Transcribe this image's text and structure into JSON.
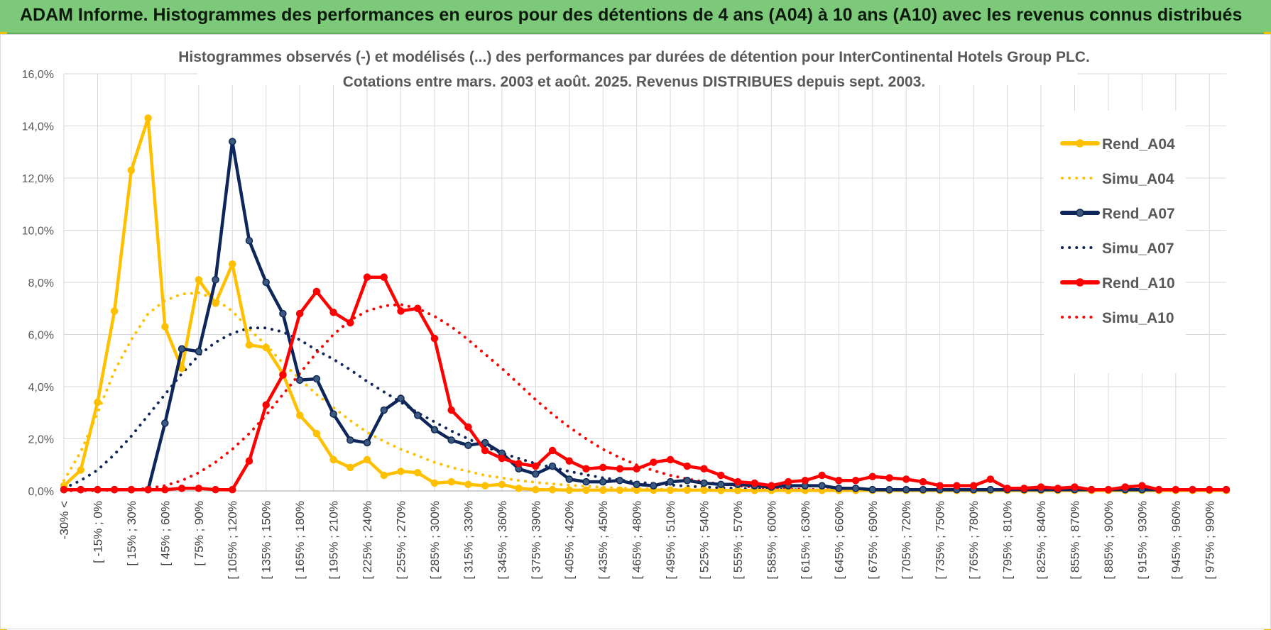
{
  "header": {
    "title": "ADAM Informe. Histogrammes des performances en euros pour des détentions de 4 ans (A04) à 10 ans (A10) avec les revenus connus distribués"
  },
  "colors": {
    "header_bg": "#7cc97a",
    "A04": "#ffc000",
    "A07": "#0e2659",
    "A10": "#ff0000",
    "grid": "#d9d9d9"
  },
  "chart_data": {
    "type": "line",
    "title": "Histogrammes observés (-) et modélisés (...) des performances par durées de détention pour InterContinental Hotels Group PLC.",
    "subtitle": "Cotations entre mars. 2003 et août. 2025. Revenus DISTRIBUES depuis sept. 2003.",
    "xlabel": "",
    "ylabel": "",
    "ylim": [
      0,
      0.16
    ],
    "yticks": [
      "0,0%",
      "2,0%",
      "4,0%",
      "6,0%",
      "8,0%",
      "10,0%",
      "12,0%",
      "14,0%",
      "16,0%"
    ],
    "grid": true,
    "legend_position": "right",
    "x_labels": [
      "-30% <",
      "[ -15% ; 0%",
      "[ 15% ; 30%",
      "[ 45% ; 60%",
      "[ 75% ; 90%",
      "[ 105% ; 120%",
      "[ 135% ; 150%",
      "[ 165% ; 180%",
      "[ 195% ; 210%",
      "[ 225% ; 240%",
      "[ 255% ; 270%",
      "[ 285% ; 300%",
      "[ 315% ; 330%",
      "[ 345% ; 360%",
      "[ 375% ; 390%",
      "[ 405% ; 420%",
      "[ 435% ; 450%",
      "[ 465% ; 480%",
      "[ 495% ; 510%",
      "[ 525% ; 540%",
      "[ 555% ; 570%",
      "[ 585% ; 600%",
      "[ 615% ; 630%",
      "[ 645% ; 660%",
      "[ 675% ; 690%",
      "[ 705% ; 720%",
      "[ 735% ; 750%",
      "[ 765% ; 780%",
      "[ 795% ; 810%",
      "[ 825% ; 840%",
      "[ 855% ; 870%",
      "[ 885% ; 900%",
      "[ 915% ; 930%",
      "[ 945% ; 960%",
      "[ 975% ; 990%"
    ],
    "series": [
      {
        "name": "Rend_A04",
        "style": "solid",
        "markers": true,
        "color": "#ffc000",
        "values": [
          0.002,
          0.008,
          0.034,
          0.069,
          0.123,
          0.143,
          0.063,
          0.047,
          0.081,
          0.072,
          0.087,
          0.056,
          0.055,
          0.045,
          0.029,
          0.022,
          0.012,
          0.009,
          0.012,
          0.006,
          0.0075,
          0.007,
          0.003,
          0.0035,
          0.0025,
          0.002,
          0.0025,
          0.001,
          0.0005,
          0.0005,
          0.0003,
          0.0003,
          0.0003,
          0.0003,
          0.0003,
          0.0003,
          0.0003,
          0.0003,
          0.0003,
          0.0002,
          0.0002,
          0.0002,
          0.0002,
          0.0002,
          0.0002,
          0.0002,
          0.0002,
          0.0002,
          0.0002,
          0.0002,
          0.0002,
          0.0002,
          0.0002,
          0.0002,
          0.0002,
          0.0002,
          0.0002,
          0.0002,
          0.0002,
          0.0002,
          0.0002,
          0.0002,
          0.0002,
          0.0002,
          0.0002,
          0.0002,
          0.0002,
          0.0002,
          0.0002,
          0.0002
        ]
      },
      {
        "name": "Simu_A04",
        "style": "dotted",
        "markers": false,
        "color": "#ffc000",
        "values": [
          0.004,
          0.015,
          0.03,
          0.046,
          0.058,
          0.068,
          0.073,
          0.0755,
          0.076,
          0.0735,
          0.069,
          0.062,
          0.056,
          0.049,
          0.043,
          0.037,
          0.032,
          0.027,
          0.0225,
          0.019,
          0.016,
          0.0135,
          0.011,
          0.009,
          0.0075,
          0.006,
          0.005,
          0.004,
          0.0033,
          0.0027,
          0.0022,
          0.0018,
          0.0014,
          0.0011,
          0.0009,
          0.0007,
          0.0006,
          0.0005,
          0.0004,
          0.0003,
          0.0002,
          0.0002,
          0.0001,
          0.0001,
          0.0001,
          0.0001,
          0.0001,
          0.0001,
          0.0001,
          0.0001,
          0.0001,
          0.0001,
          0.0001,
          0.0001,
          0.0001,
          0.0001,
          0.0001,
          0.0001,
          0.0001,
          0.0001,
          0.0001,
          0.0001,
          0.0001,
          0.0001,
          0.0001,
          0.0001,
          0.0001,
          0.0001,
          0.0001,
          0.0001
        ]
      },
      {
        "name": "Rend_A07",
        "style": "solid",
        "markers": true,
        "color": "#0e2659",
        "values": [
          0.0005,
          0.0005,
          0.0005,
          0.0005,
          0.0005,
          0.0005,
          0.026,
          0.0545,
          0.0535,
          0.081,
          0.134,
          0.096,
          0.08,
          0.068,
          0.0425,
          0.043,
          0.0295,
          0.0195,
          0.0185,
          0.031,
          0.0355,
          0.029,
          0.0235,
          0.0195,
          0.0175,
          0.0185,
          0.0145,
          0.0085,
          0.0065,
          0.0095,
          0.0045,
          0.0035,
          0.0035,
          0.004,
          0.0025,
          0.002,
          0.0035,
          0.004,
          0.003,
          0.0025,
          0.0025,
          0.002,
          0.0015,
          0.002,
          0.002,
          0.002,
          0.001,
          0.001,
          0.0005,
          0.0005,
          0.0005,
          0.0005,
          0.0005,
          0.0005,
          0.0005,
          0.0005,
          0.0005,
          0.0005,
          0.0005,
          0.0005,
          0.0005,
          0.0005,
          0.0005,
          0.0005,
          0.0005,
          0.0005,
          0.0005,
          0.0005,
          0.0005,
          0.0005
        ]
      },
      {
        "name": "Simu_A07",
        "style": "dotted",
        "markers": false,
        "color": "#0e2659",
        "values": [
          0.001,
          0.004,
          0.008,
          0.014,
          0.021,
          0.029,
          0.037,
          0.045,
          0.052,
          0.057,
          0.0605,
          0.0625,
          0.0625,
          0.061,
          0.058,
          0.054,
          0.0505,
          0.0465,
          0.042,
          0.038,
          0.034,
          0.03,
          0.0265,
          0.023,
          0.02,
          0.017,
          0.0145,
          0.0125,
          0.0105,
          0.009,
          0.0075,
          0.0062,
          0.005,
          0.0042,
          0.0034,
          0.0028,
          0.0023,
          0.0018,
          0.0015,
          0.0012,
          0.001,
          0.0008,
          0.0006,
          0.0005,
          0.0004,
          0.0003,
          0.0003,
          0.0002,
          0.0002,
          0.0002,
          0.0002,
          0.0002,
          0.0002,
          0.0002,
          0.0002,
          0.0002,
          0.0002,
          0.0002,
          0.0002,
          0.0002,
          0.0002,
          0.0002,
          0.0002,
          0.0002,
          0.0002,
          0.0002,
          0.0002,
          0.0002,
          0.0002,
          0.0002
        ]
      },
      {
        "name": "Rend_A10",
        "style": "solid",
        "markers": true,
        "color": "#ff0000",
        "values": [
          0.0005,
          0.0005,
          0.0005,
          0.0005,
          0.0005,
          0.0005,
          0.0005,
          0.001,
          0.001,
          0.0005,
          0.0005,
          0.0115,
          0.033,
          0.0445,
          0.068,
          0.0765,
          0.0685,
          0.0645,
          0.082,
          0.082,
          0.069,
          0.07,
          0.0585,
          0.031,
          0.0245,
          0.0155,
          0.0125,
          0.0105,
          0.0095,
          0.0155,
          0.0115,
          0.0085,
          0.009,
          0.0085,
          0.0085,
          0.011,
          0.012,
          0.0095,
          0.0085,
          0.006,
          0.0035,
          0.003,
          0.002,
          0.0035,
          0.004,
          0.006,
          0.004,
          0.004,
          0.0055,
          0.005,
          0.0045,
          0.0035,
          0.002,
          0.002,
          0.002,
          0.0045,
          0.001,
          0.001,
          0.0015,
          0.001,
          0.0015,
          0.0005,
          0.0005,
          0.0015,
          0.002,
          0.0005,
          0.0005,
          0.0005,
          0.0005,
          0.0005
        ]
      },
      {
        "name": "Simu_A10",
        "style": "dotted",
        "markers": false,
        "color": "#ff0000",
        "values": [
          0.0001,
          0.0001,
          0.0002,
          0.0003,
          0.0005,
          0.001,
          0.002,
          0.004,
          0.007,
          0.011,
          0.016,
          0.022,
          0.029,
          0.037,
          0.045,
          0.053,
          0.06,
          0.0655,
          0.069,
          0.071,
          0.0715,
          0.07,
          0.067,
          0.063,
          0.058,
          0.0525,
          0.047,
          0.041,
          0.035,
          0.0295,
          0.0245,
          0.02,
          0.016,
          0.0128,
          0.01,
          0.0078,
          0.006,
          0.0046,
          0.0035,
          0.0026,
          0.002,
          0.0015,
          0.0011,
          0.0008,
          0.0006,
          0.0005,
          0.0004,
          0.0003,
          0.0003,
          0.0002,
          0.0002,
          0.0002,
          0.0002,
          0.0002,
          0.0002,
          0.0002,
          0.0002,
          0.0002,
          0.0002,
          0.0002,
          0.0002,
          0.0002,
          0.0002,
          0.0002,
          0.0002,
          0.0002,
          0.0002,
          0.0002,
          0.0002,
          0.0002
        ]
      }
    ]
  }
}
